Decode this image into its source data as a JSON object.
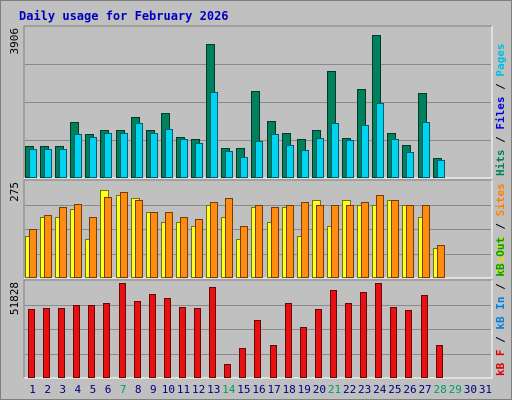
{
  "chart_data": {
    "type": "bar",
    "title": "Daily usage for February 2026",
    "categories": [
      "1",
      "2",
      "3",
      "4",
      "5",
      "6",
      "7",
      "8",
      "9",
      "10",
      "11",
      "12",
      "13",
      "14",
      "15",
      "16",
      "17",
      "18",
      "19",
      "20",
      "21",
      "22",
      "23",
      "24",
      "25",
      "26",
      "27",
      "28",
      "29",
      "30",
      "31"
    ],
    "weekend_days": [
      "7",
      "14",
      "21",
      "28"
    ],
    "future_days": [
      "29",
      "30",
      "31"
    ],
    "colors": {
      "background": "#c0c0c0",
      "frame": "#e0e0e0",
      "title": "#0000c0",
      "tick_label": "#000080",
      "weekend_tick": "#00a060",
      "hits": "#00805c",
      "files": "#00d4f0",
      "pages": "#00c0d8",
      "visits": "#ffff20",
      "sites": "#ff8c10",
      "kb_f": "#e81010",
      "kb_in": "#1060e0",
      "kb_out": "#00a000"
    },
    "panels": [
      {
        "name": "hits-files-pages",
        "max_label": "3906",
        "ymax": 3906,
        "legend": [
          {
            "text": "Hits",
            "color": "#00805c"
          },
          {
            "text": "Files",
            "color": "#0000e0"
          },
          {
            "text": "Pages",
            "color": "#00c0e0"
          }
        ],
        "series": [
          {
            "name": "Hits",
            "values": [
              830,
              830,
              830,
              1450,
              1130,
              1240,
              1240,
              1580,
              1240,
              1700,
              1050,
              990,
              3500,
              760,
              760,
              2260,
              1490,
              1160,
              990,
              1240,
              2800,
              1030,
              2330,
              3740,
              1160,
              840,
              2230,
              490,
              0,
              0,
              0
            ]
          },
          {
            "name": "Files",
            "values": [
              750,
              750,
              750,
              1130,
              1050,
              1170,
              1170,
              1430,
              1160,
              1260,
              990,
              910,
              2240,
              690,
              520,
              960,
              1140,
              840,
              720,
              1020,
              1430,
              970,
              1360,
              1940,
              990,
              650,
              1450,
              440,
              0,
              0,
              0
            ]
          }
        ]
      },
      {
        "name": "visits-sites",
        "max_label": "275",
        "ymax": 275,
        "legend": [
          {
            "text": "Visits",
            "color": "#e0e000"
          },
          {
            "text": "Sites",
            "color": "#ff8000"
          }
        ],
        "series": [
          {
            "name": "Visits",
            "values": [
              120,
              175,
              175,
              200,
              110,
              255,
              240,
              230,
              190,
              160,
              160,
              150,
              210,
              175,
              110,
              205,
              160,
              205,
              120,
              225,
              150,
              225,
              210,
              210,
              225,
              210,
              175,
              85,
              0,
              0,
              0
            ]
          },
          {
            "name": "Sites",
            "values": [
              140,
              180,
              205,
              215,
              175,
              235,
              250,
              225,
              190,
              190,
              175,
              170,
              220,
              230,
              150,
              210,
              205,
              210,
              220,
              210,
              210,
              210,
              220,
              240,
              225,
              210,
              210,
              95,
              0,
              0,
              0
            ]
          }
        ]
      },
      {
        "name": "kb",
        "max_label": "51828",
        "ymax": 51828,
        "legend": [
          {
            "text": "kB F",
            "color": "#e00000"
          },
          {
            "text": "kB In",
            "color": "#0080e0"
          },
          {
            "text": "kB Out",
            "color": "#00a000"
          }
        ],
        "series": [
          {
            "name": "kB F",
            "values": [
              37500,
              37800,
              38300,
              39900,
              39900,
              40800,
              51700,
              41700,
              45600,
              43600,
              38700,
              38100,
              49600,
              7200,
              16200,
              31600,
              17900,
              40900,
              27400,
              37300,
              48100,
              40900,
              46600,
              51800,
              38700,
              36900,
              45300,
              17800,
              0,
              0,
              0
            ]
          }
        ]
      }
    ]
  }
}
